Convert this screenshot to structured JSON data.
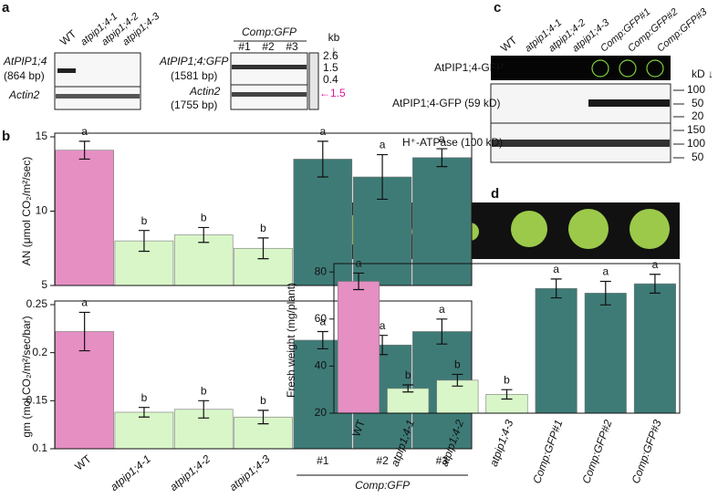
{
  "chart_data": [
    {
      "type": "bar",
      "ylabel": "AN (μmol CO₂/m²/sec)",
      "values": [
        14.1,
        8.0,
        8.4,
        7.5,
        13.5,
        12.3,
        13.6
      ],
      "errors": [
        0.6,
        0.7,
        0.5,
        0.7,
        1.2,
        1.5,
        0.6
      ],
      "annotations": [
        "a",
        "b",
        "b",
        "b",
        "a",
        "a",
        "a"
      ],
      "colors": [
        "#e58fc3",
        "#d9f6c9",
        "#d9f6c9",
        "#d9f6c9",
        "#3e7b77",
        "#3e7b77",
        "#3e7b77"
      ],
      "ylim": [
        5,
        15
      ],
      "yticks": [
        5,
        10,
        15
      ]
    },
    {
      "type": "bar",
      "ylabel": "gm (mol CO₂/m²/sec/bar)",
      "categories": [
        "WT",
        "atpip1;4-1",
        "atpip1;4-2",
        "atpip1;4-3",
        "#1",
        "#2",
        "#3"
      ],
      "group_label": "Comp:GFP",
      "values": [
        0.222,
        0.138,
        0.141,
        0.133,
        0.213,
        0.208,
        0.222
      ],
      "errors": [
        0.02,
        0.005,
        0.009,
        0.007,
        0.009,
        0.01,
        0.013
      ],
      "annotations": [
        "a",
        "b",
        "b",
        "b",
        "a",
        "a",
        "a"
      ],
      "colors": [
        "#e58fc3",
        "#d9f6c9",
        "#d9f6c9",
        "#d9f6c9",
        "#3e7b77",
        "#3e7b77",
        "#3e7b77"
      ],
      "ylim": [
        0.1,
        0.25
      ],
      "yticks": [
        0.1,
        0.15,
        0.2,
        0.25
      ]
    },
    {
      "type": "bar",
      "ylabel": "Fresh weight (mg/plant)",
      "categories": [
        "WT",
        "atpip1;4-1",
        "atpip1;4-2",
        "atpip1;4-3",
        "Comp:GFP#1",
        "Comp:GFP#2",
        "Comp:GFP#3"
      ],
      "values": [
        76,
        30.5,
        34,
        28,
        73,
        71,
        75
      ],
      "errors": [
        3.5,
        1.5,
        2.5,
        2,
        4,
        5,
        4
      ],
      "annotations": [
        "a",
        "b",
        "b",
        "b",
        "a",
        "a",
        "a"
      ],
      "colors": [
        "#e58fc3",
        "#d9f6c9",
        "#d9f6c9",
        "#d9f6c9",
        "#3e7b77",
        "#3e7b77",
        "#3e7b77"
      ],
      "ylim": [
        20,
        82
      ],
      "yticks": [
        20,
        40,
        60,
        80
      ]
    }
  ],
  "figure": {
    "panel_labels": [
      "a",
      "b",
      "c",
      "d"
    ],
    "gel_a": {
      "lanes_left": [
        "WT",
        "atpip1;4-1",
        "atpip1;4-2",
        "atpip1;4-3"
      ],
      "rows_left": [
        "AtPIP1;4",
        "(864 bp)",
        "Actin2"
      ],
      "group": "Comp:GFP",
      "lanes_right": [
        "#1",
        "#2",
        "#3"
      ],
      "rows_right": [
        "AtPIP1;4:GFP",
        "(1581 bp)",
        "Actin2",
        "(1755 bp)"
      ],
      "ladder_unit": "kb",
      "ladder_arrow": "↓",
      "ladder": [
        "2.6",
        "1.5",
        "0.4"
      ],
      "ladder_pink": "←1.5"
    },
    "blot_c": {
      "lanes": [
        "WT",
        "atpip1;4-1",
        "atpip1;4-2",
        "atpip1;4-3",
        "Comp:GFP#1",
        "Comp:GFP#2",
        "Comp:GFP#3"
      ],
      "rows": [
        "AtPIP1;4-GFP",
        "AtPIP1;4-GFP (59 kD)",
        "H⁺-ATPase (100 kD)"
      ],
      "unit": "kD ↓",
      "markers_top": [
        "100",
        "50",
        "20"
      ],
      "markers_bottom": [
        "150",
        "100",
        "50"
      ]
    }
  }
}
